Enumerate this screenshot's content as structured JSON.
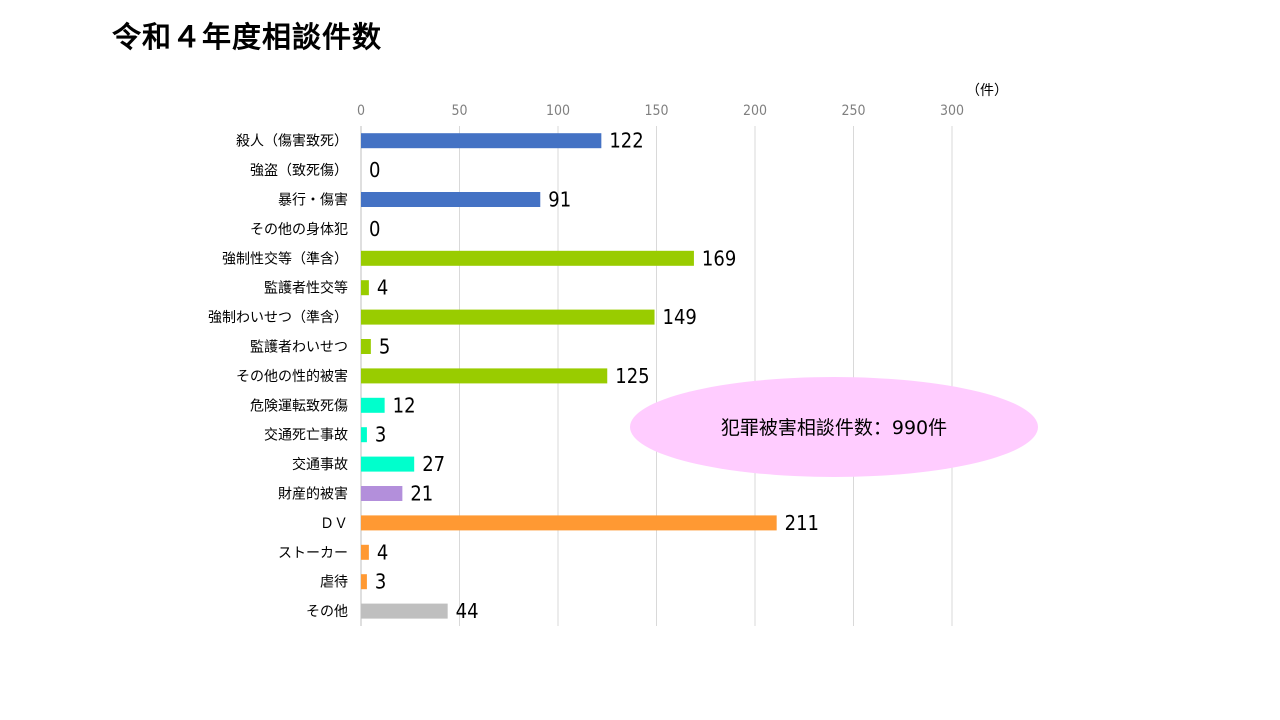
{
  "title": "令和４年度相談件数",
  "callout": {
    "text": "犯罪被害相談件数：990件",
    "color": "#ffccff"
  },
  "chart_data": {
    "type": "bar",
    "orientation": "horizontal",
    "unit": "（件）",
    "xlim": [
      0,
      300
    ],
    "ticks": [
      0,
      50,
      100,
      150,
      200,
      250,
      300
    ],
    "grid": true,
    "legend": "none",
    "categories": [
      "殺人（傷害致死）",
      "強盗（致死傷）",
      "暴行・傷害",
      "その他の身体犯",
      "強制性交等（準含）",
      "監護者性交等",
      "強制わいせつ（準含）",
      "監護者わいせつ",
      "その他の性的被害",
      "危険運転致死傷",
      "交通死亡事故",
      "交通事故",
      "財産的被害",
      "ＤＶ",
      "ストーカー",
      "虐待",
      "その他"
    ],
    "values": [
      122,
      0,
      91,
      0,
      169,
      4,
      149,
      5,
      125,
      12,
      3,
      27,
      21,
      211,
      4,
      3,
      44
    ],
    "colors": [
      "#4472c4",
      "#4472c4",
      "#4472c4",
      "#4472c4",
      "#99cc00",
      "#99cc00",
      "#99cc00",
      "#99cc00",
      "#99cc00",
      "#00ffcc",
      "#00ffcc",
      "#00ffcc",
      "#b38fdb",
      "#ff9933",
      "#ff9933",
      "#ff9933",
      "#bfbfbf"
    ]
  }
}
